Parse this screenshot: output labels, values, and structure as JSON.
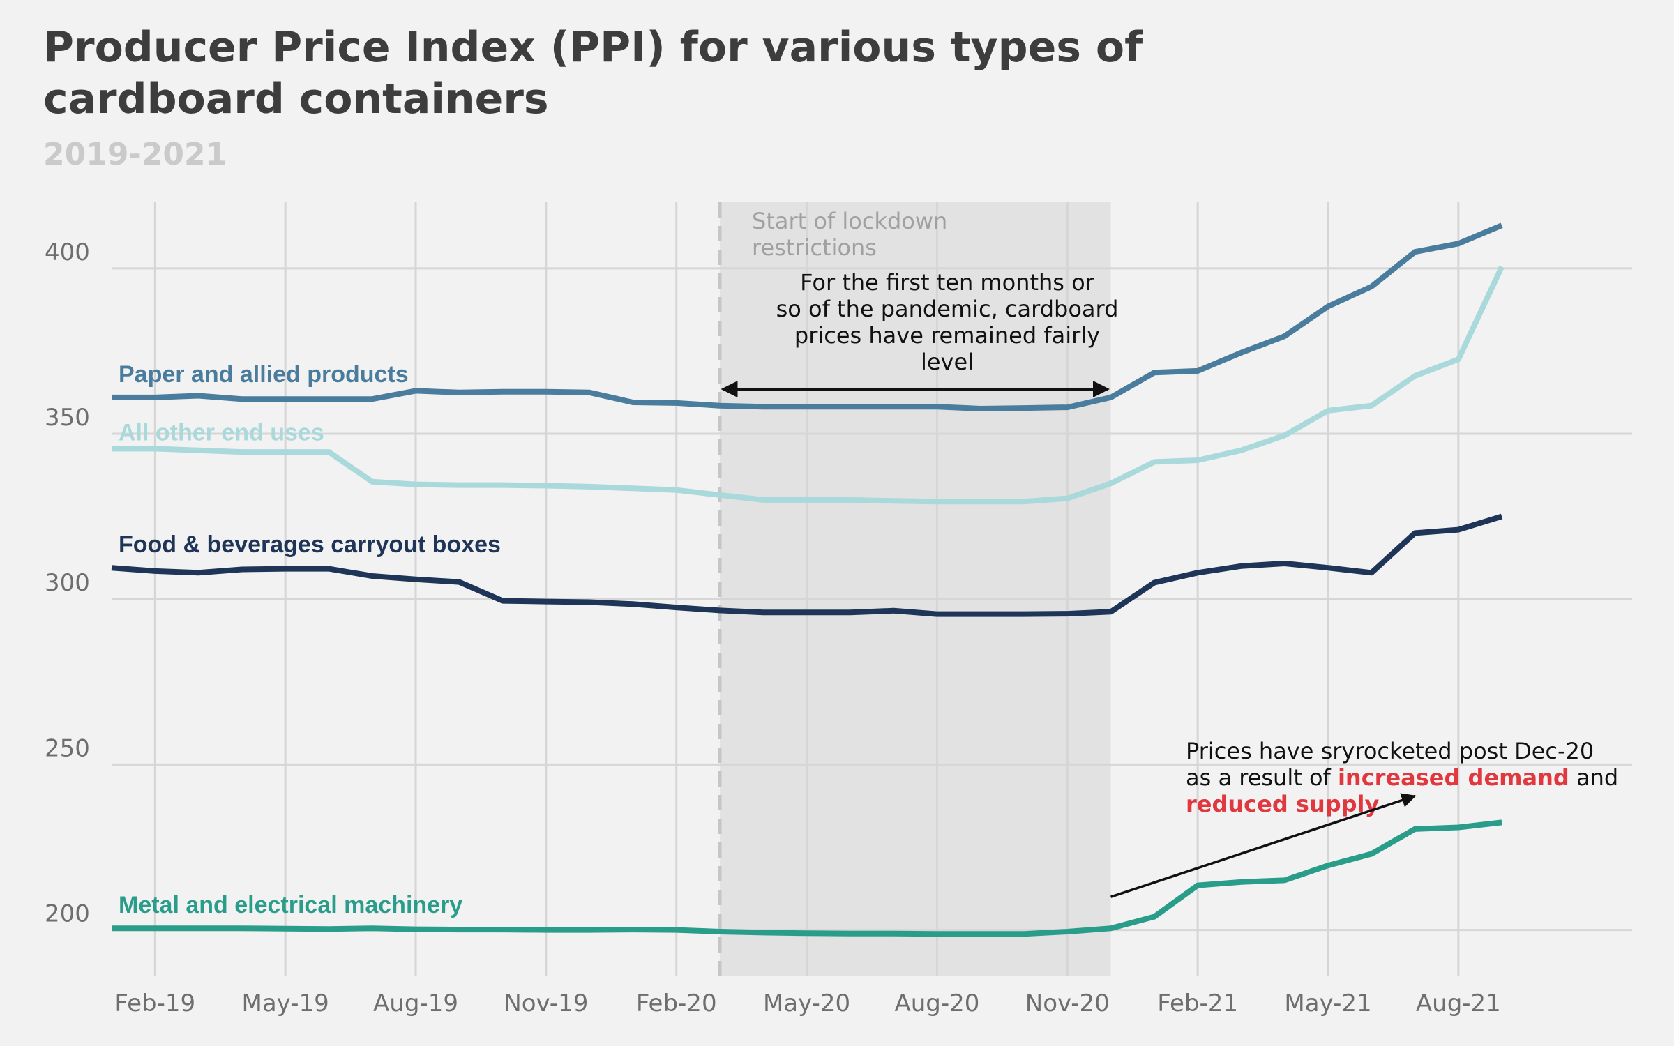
{
  "colors": {
    "background": "#f2f2f2",
    "grid": "#d6d6d6",
    "shade": "#e2e2e2",
    "paper": "#4a7c9d",
    "other": "#a9d9da",
    "food": "#1f3557",
    "metal": "#2a9d8a",
    "highlight": "#e0383e"
  },
  "chart_data": {
    "type": "line",
    "title_lines": [
      "Producer Price Index (PPI) for various types of",
      "cardboard containers"
    ],
    "subtitle": "2019-2021",
    "xlabel": "",
    "ylabel": "",
    "x_range": [
      "2019-01",
      "2021-12"
    ],
    "ylim": [
      186,
      420
    ],
    "y_ticks": [
      200,
      250,
      300,
      350,
      400
    ],
    "x_ticks": [
      {
        "date": "2019-02",
        "label": "Feb-19"
      },
      {
        "date": "2019-05",
        "label": "May-19"
      },
      {
        "date": "2019-08",
        "label": "Aug-19"
      },
      {
        "date": "2019-11",
        "label": "Nov-19"
      },
      {
        "date": "2020-02",
        "label": "Feb-20"
      },
      {
        "date": "2020-05",
        "label": "May-20"
      },
      {
        "date": "2020-08",
        "label": "Aug-20"
      },
      {
        "date": "2020-11",
        "label": "Nov-20"
      },
      {
        "date": "2021-02",
        "label": "Feb-21"
      },
      {
        "date": "2021-05",
        "label": "May-21"
      },
      {
        "date": "2021-08",
        "label": "Aug-21"
      }
    ],
    "grid": true,
    "legend": "direct labels",
    "x": [
      "2019-01",
      "2019-02",
      "2019-03",
      "2019-04",
      "2019-05",
      "2019-06",
      "2019-07",
      "2019-08",
      "2019-09",
      "2019-10",
      "2019-11",
      "2019-12",
      "2020-01",
      "2020-02",
      "2020-03",
      "2020-04",
      "2020-05",
      "2020-06",
      "2020-07",
      "2020-08",
      "2020-09",
      "2020-10",
      "2020-11",
      "2020-12",
      "2021-01",
      "2021-02",
      "2021-03",
      "2021-04",
      "2021-05",
      "2021-06",
      "2021-07",
      "2021-08",
      "2021-09"
    ],
    "series": [
      {
        "name": "Paper and allied products",
        "color_key": "paper",
        "values": [
          361,
          361,
          361.5,
          360.5,
          360.5,
          360.5,
          360.5,
          363,
          362.5,
          362.7,
          362.7,
          362.5,
          359.5,
          359.3,
          358.5,
          358.2,
          358.2,
          358.2,
          358.2,
          358.2,
          357.6,
          357.8,
          358,
          361,
          368.5,
          369,
          374.5,
          379.5,
          388.5,
          394.5,
          405,
          407.5,
          413
        ]
      },
      {
        "name": "All other end uses",
        "color_key": "other",
        "values": [
          345.5,
          345.5,
          345,
          344.5,
          344.5,
          344.5,
          335.5,
          334.7,
          334.5,
          334.5,
          334.3,
          334,
          333.5,
          333,
          331.5,
          330,
          330,
          330,
          329.7,
          329.5,
          329.5,
          329.5,
          330.5,
          335,
          341.5,
          342,
          345,
          349.5,
          357,
          358.5,
          367.5,
          372.5,
          400.5
        ]
      },
      {
        "name": "Food & beverages carryout boxes",
        "color_key": "food",
        "values": [
          309.5,
          308.5,
          308,
          309,
          309.2,
          309.2,
          307,
          306,
          305.2,
          299.5,
          299.3,
          299.1,
          298.5,
          297.5,
          296.6,
          296,
          296,
          296,
          296.5,
          295.5,
          295.5,
          295.5,
          295.6,
          296.2,
          305,
          308,
          310,
          310.8,
          309.5,
          308,
          320,
          321,
          325
        ]
      },
      {
        "name": "Metal and electrical machinery",
        "color_key": "metal",
        "values": [
          200.5,
          200.5,
          200.5,
          200.5,
          200.4,
          200.3,
          200.5,
          200.2,
          200.1,
          200.1,
          200,
          200,
          200.1,
          200,
          199.5,
          199.2,
          199,
          198.9,
          198.9,
          198.8,
          198.8,
          198.8,
          199.5,
          200.5,
          204,
          213.5,
          214.5,
          215,
          219.5,
          223,
          230.5,
          231,
          232.5
        ]
      }
    ],
    "shaded_period": {
      "start": "2020-03",
      "end": "2020-12"
    },
    "lockdown_line": "2020-03",
    "annotations": {
      "lockdown_lines": [
        "Start of lockdown",
        "restrictions"
      ],
      "level_lines": [
        "For the first ten months or",
        "so of the pandemic, cardboard",
        "prices have remained fairly",
        "level"
      ],
      "skyrocket_line1": "Prices have sryrocketed post Dec-20",
      "skyrocket_line2_pre": "as a result of ",
      "skyrocket_line2_red": "increased demand",
      "skyrocket_line2_post": " and",
      "skyrocket_line3_red": "reduced supply"
    }
  }
}
